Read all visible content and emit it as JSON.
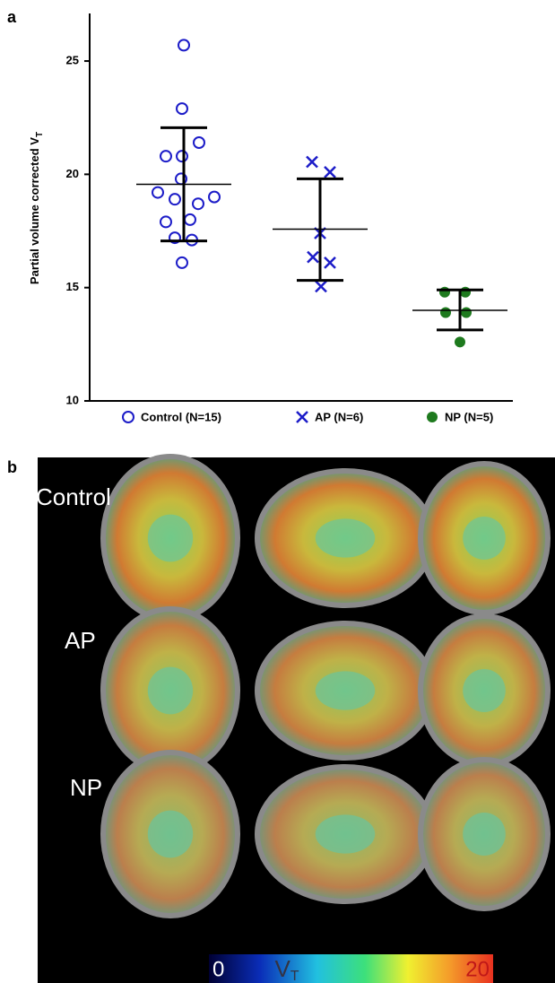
{
  "chart_data": {
    "type": "dot",
    "panel_label": "a",
    "ylabel": "Partial volume corrected V",
    "ylabel_sub": "T",
    "ylim": [
      10,
      27.1
    ],
    "yticks": [
      10,
      15,
      20,
      25
    ],
    "series": [
      {
        "name": "Control (N=15)",
        "color": "#1c1cc8",
        "marker": "open-circle",
        "values": [
          25.7,
          22.9,
          21.4,
          20.8,
          20.8,
          19.8,
          19.2,
          19.0,
          18.9,
          18.7,
          18.0,
          17.9,
          17.2,
          17.1,
          16.1
        ],
        "mean": 19.56,
        "upper": 22.06,
        "lower": 17.06
      },
      {
        "name": "AP (N=6)",
        "color": "#1c1cc8",
        "marker": "cross",
        "values": [
          20.55,
          20.1,
          17.4,
          16.35,
          16.1,
          15.05
        ],
        "mean": 17.58,
        "upper": 19.8,
        "lower": 15.32
      },
      {
        "name": "NP (N=5)",
        "color": "#1e7a1e",
        "marker": "filled-circle",
        "values": [
          14.8,
          14.8,
          13.9,
          13.9,
          12.6
        ],
        "mean": 14.0,
        "upper": 14.9,
        "lower": 13.13
      }
    ]
  },
  "panel_b": {
    "panel_label": "b",
    "rows": [
      "Control",
      "AP",
      "NP"
    ],
    "colorbar": {
      "label": "V",
      "label_sub": "T",
      "lim": [
        0,
        20
      ],
      "ticks": [
        0,
        20
      ]
    }
  }
}
